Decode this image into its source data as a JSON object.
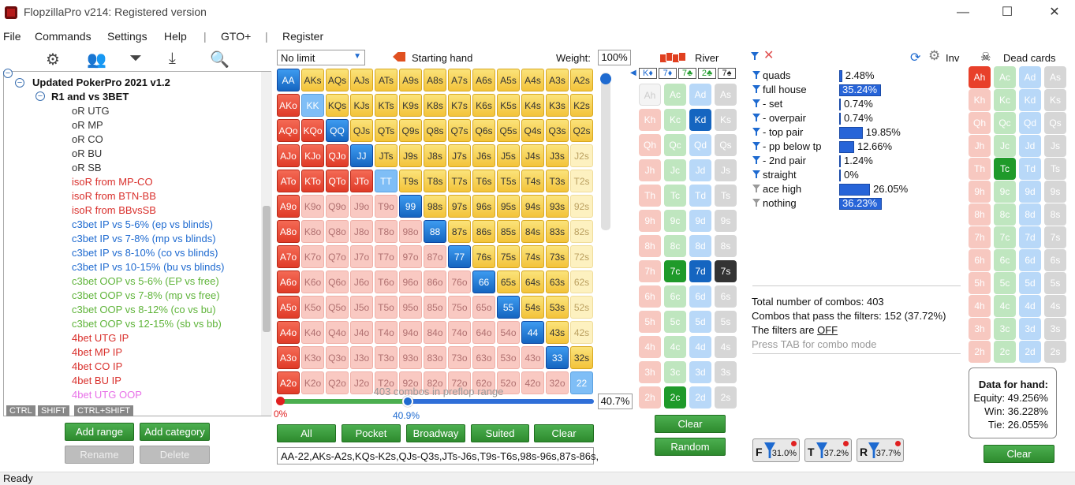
{
  "window": {
    "title": "FlopzillaPro v214: Registered version",
    "minimize": "—",
    "maximize": "☐",
    "close": "✕"
  },
  "menu": {
    "file": "File",
    "commands": "Commands",
    "settings": "Settings",
    "help": "Help",
    "sep1": "|",
    "gto": "GTO+",
    "sep2": "|",
    "register": "Register"
  },
  "tree": {
    "root": "Updated PokerPro 2021 v1.2",
    "group": "R1 and vs 3BET",
    "items": [
      "oR UTG",
      "oR MP",
      "oR CO",
      "oR BU",
      "oR SB",
      "isoR from MP-CO",
      "isoR from BTN-BB",
      "isoR from BBvsSB",
      "c3bet IP vs 5-6% (ep vs blinds)",
      "c3bet IP vs 7-8% (mp vs blinds)",
      "c3bet IP vs 8-10% (co vs blinds)",
      "c3bet IP vs 10-15% (bu vs blinds)",
      "c3bet OOP vs 5-6% (EP vs free)",
      "c3bet OOP vs 7-8% (mp vs free)",
      "c3bet OOP vs 8-12% (co vs bu)",
      "c3bet OOP vs 12-15% (sb vs bb)",
      "4bet UTG IP",
      "4bet MP IP",
      "4bet CO IP",
      "4bet BU IP",
      "4bet UTG OOP"
    ],
    "item_colors": [
      "#333",
      "#333",
      "#333",
      "#333",
      "#333",
      "#d9302c",
      "#d9302c",
      "#d9302c",
      "#1e6ad0",
      "#1e6ad0",
      "#1e6ad0",
      "#1e6ad0",
      "#5fb43a",
      "#5fb43a",
      "#5fb43a",
      "#5fb43a",
      "#d9302c",
      "#d9302c",
      "#d9302c",
      "#d9302c",
      "#e870e8"
    ],
    "mods": [
      "CTRL",
      "SHIFT",
      "CTRL+SHIFT"
    ]
  },
  "left_buttons": {
    "add_range": "Add range",
    "add_category": "Add category",
    "rename": "Rename",
    "delete": "Delete"
  },
  "range": {
    "limit": "No limit",
    "starting_hand": "Starting hand",
    "weight_label": "Weight:",
    "weight": "100%",
    "combos_info": "403 combos in preflop range",
    "slider_min": "0%",
    "slider_val": "40.9%",
    "slider_pct": "40.7%",
    "buttons": [
      "All",
      "Pocket",
      "Broadway",
      "Suited",
      "Clear"
    ],
    "text": "AA-22,AKs-A2s,KQs-K2s,QJs-Q3s,JTs-J6s,T9s-T6s,98s-96s,87s-86s,"
  },
  "grid": {
    "ranks": [
      "A",
      "K",
      "Q",
      "J",
      "T",
      "9",
      "8",
      "7",
      "6",
      "5",
      "4",
      "3",
      "2"
    ],
    "selected_rows": [
      13,
      12,
      11,
      9,
      8,
      7,
      6,
      5,
      4,
      3,
      2,
      2,
      1
    ]
  },
  "board": {
    "river_label": "River",
    "board_cards": [
      "K♦",
      "7♦",
      "7♣",
      "2♣",
      "7♠"
    ],
    "suits": [
      "h",
      "c",
      "d",
      "s"
    ],
    "ranks": [
      "A",
      "K",
      "Q",
      "J",
      "T",
      "9",
      "8",
      "7",
      "6",
      "5",
      "4",
      "3",
      "2"
    ],
    "on": [
      "Kd",
      "7c",
      "7d",
      "7s",
      "2c"
    ],
    "gone": [
      "Ah"
    ],
    "clear": "Clear",
    "random": "Random"
  },
  "filters": {
    "inv": "Inv",
    "rows": [
      {
        "label": "quads",
        "value": "2.48%",
        "pct": 2.48,
        "gray": false
      },
      {
        "label": "full house",
        "value": "35.24%",
        "pct": 35.24,
        "gray": false
      },
      {
        "label": "- set",
        "value": "0.74%",
        "pct": 0.74,
        "gray": false
      },
      {
        "label": "- overpair",
        "value": "0.74%",
        "pct": 0.74,
        "gray": false
      },
      {
        "label": "- top pair",
        "value": "19.85%",
        "pct": 19.85,
        "gray": false
      },
      {
        "label": "- pp below tp",
        "value": "12.66%",
        "pct": 12.66,
        "gray": false
      },
      {
        "label": "- 2nd pair",
        "value": "1.24%",
        "pct": 1.24,
        "gray": false
      },
      {
        "label": "straight",
        "value": "0%",
        "pct": 0,
        "gray": false
      },
      {
        "label": "ace high",
        "value": "26.05%",
        "pct": 26.05,
        "gray": true
      },
      {
        "label": "nothing",
        "value": "36.23%",
        "pct": 36.23,
        "gray": true
      }
    ],
    "total": "Total number of combos: 403",
    "pass": "Combos that pass the filters: 152 (37.72%)",
    "off_prefix": "The filters are ",
    "off": "OFF",
    "tab_hint": "Press TAB for combo mode",
    "stats": [
      {
        "letter": "F",
        "value": "31.0%"
      },
      {
        "letter": "T",
        "value": "37.2%"
      },
      {
        "letter": "R",
        "value": "37.7%"
      }
    ]
  },
  "dead": {
    "label": "Dead cards",
    "on": [
      "Ah",
      "Tc"
    ],
    "clear": "Clear"
  },
  "equity": {
    "title": "Data for hand:",
    "equity": "Equity: 49.256%",
    "win": "Win: 36.228%",
    "tie": "Tie: 26.055%"
  },
  "status": "Ready"
}
